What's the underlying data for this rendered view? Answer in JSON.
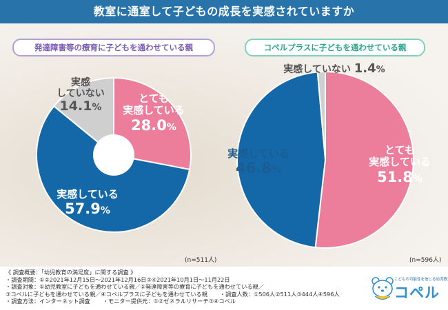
{
  "title": "教室に通室して子どもの成長を実感されていますか",
  "colors": {
    "pink": "#ec7e9c",
    "blue": "#1568a8",
    "grey": "#cfcfcf",
    "title_bg": "#2773aa"
  },
  "chart_data": [
    {
      "type": "pie",
      "title": "発達障害等の療育に子どもを通わせている親",
      "note": "(n=511人)",
      "slices": [
        {
          "label": "とても実感している",
          "label_lines": [
            "とても",
            "実感している"
          ],
          "value": 28.0,
          "value_text": "28.0",
          "color": "#ec7e9c"
        },
        {
          "label": "実感している",
          "label_lines": [
            "実感している"
          ],
          "value": 57.9,
          "value_text": "57.9",
          "color": "#1568a8"
        },
        {
          "label": "実感していない",
          "label_lines": [
            "実感",
            "していない"
          ],
          "value": 14.1,
          "value_text": "14.1",
          "color": "#cfcfcf"
        }
      ]
    },
    {
      "type": "pie",
      "title": "コペルプラスに子どもを通わせている親",
      "note": "(n=596人)",
      "slices": [
        {
          "label": "とても実感している",
          "label_lines": [
            "とても",
            "実感している"
          ],
          "value": 51.8,
          "value_text": "51.8",
          "color": "#ec7e9c"
        },
        {
          "label": "実感している",
          "label_lines": [
            "実感している"
          ],
          "value": 46.8,
          "value_text": "46.8",
          "color": "#1568a8"
        },
        {
          "label": "実感していない",
          "label_lines": [
            "実感していない"
          ],
          "value": 1.4,
          "value_text": "1.4",
          "color": "#cfcfcf"
        }
      ]
    }
  ],
  "footer": {
    "lines": [
      "《 調査概要：「幼児教育の満足度」に関する調査 》",
      "・調査期間：①②2021年12月15日～2021年12月16日③④2021年10月1日～11月22日",
      "・調査対象：①幼児教室に子どもを通わせている親／②発達障害等の療育に子どもを通わせている親／",
      "③コペルに子どもを通わせている親／④コペルプラスに子どもを通わせている親"
    ],
    "respondents": "・調査人数：①506人②511人③444人④596人",
    "method": "・調査方法：インターネット調査",
    "provider": "・モニター提供元：①②ゼネラルリサーチ③④コペル"
  },
  "logo": {
    "tagline": "こどもの可能性を信じる幼児教室",
    "name": "コペル",
    "icon": "bear-mascot-icon"
  }
}
